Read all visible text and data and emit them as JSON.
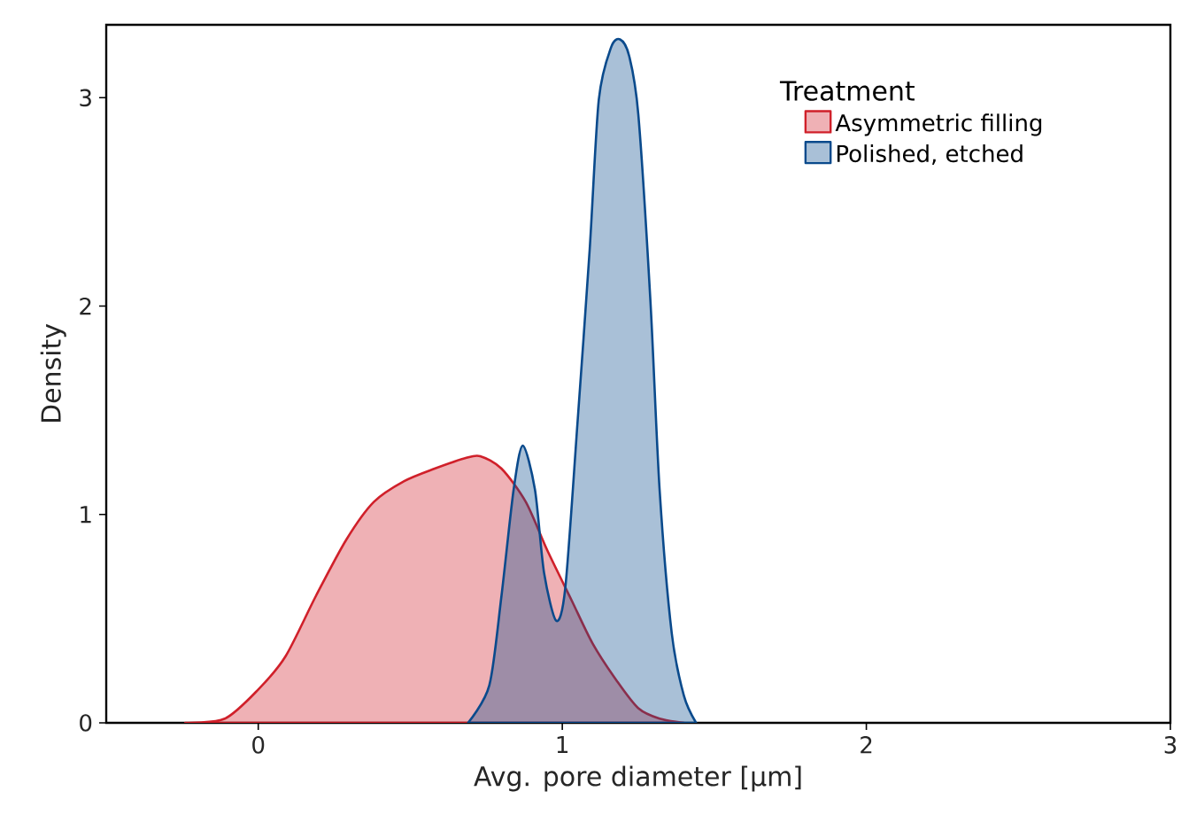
{
  "chart_data": {
    "type": "area",
    "xlabel": "Avg. pore diameter [µm]",
    "ylabel": "Density",
    "legend_title": "Treatment",
    "legend": "top right",
    "xlim": [
      -0.5,
      3
    ],
    "ylim": [
      0,
      3.35
    ],
    "xticks": [
      0,
      1,
      2,
      3
    ],
    "yticks": [
      0,
      1,
      2,
      3
    ],
    "series": [
      {
        "name": "Asymmetric filling",
        "color": "#d0202a",
        "x": [
          -0.24,
          -0.11,
          0,
          0.09,
          0.19,
          0.29,
          0.38,
          0.48,
          0.58,
          0.68,
          0.73,
          0.8,
          0.88,
          0.95,
          1.03,
          1.1,
          1.18,
          1.25,
          1.32,
          1.4
        ],
        "values": [
          0,
          0.02,
          0.16,
          0.32,
          0.61,
          0.88,
          1.06,
          1.16,
          1.22,
          1.27,
          1.28,
          1.22,
          1.06,
          0.83,
          0.59,
          0.38,
          0.2,
          0.07,
          0.02,
          0
        ]
      },
      {
        "name": "Polished, etched",
        "color": "#0a4a8c",
        "x": [
          0.69,
          0.76,
          0.8,
          0.84,
          0.87,
          0.91,
          0.94,
          0.98,
          1.01,
          1.05,
          1.09,
          1.12,
          1.16,
          1.19,
          1.22,
          1.25,
          1.29,
          1.32,
          1.36,
          1.4,
          1.44
        ],
        "values": [
          0,
          0.18,
          0.61,
          1.12,
          1.33,
          1.12,
          0.72,
          0.49,
          0.65,
          1.44,
          2.27,
          2.99,
          3.24,
          3.28,
          3.2,
          2.92,
          2.02,
          1.12,
          0.43,
          0.13,
          0
        ]
      }
    ]
  }
}
